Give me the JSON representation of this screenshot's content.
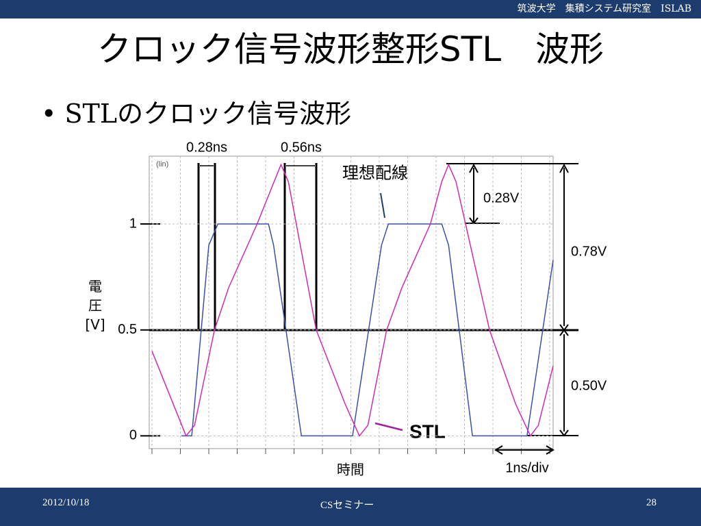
{
  "header": {
    "text": "筑波大学　集積システム研究室　ISLAB"
  },
  "title": "クロック信号波形整形STL　波形",
  "bullet": "STLのクロック信号波形",
  "chart_data": {
    "type": "line",
    "ylabel": "電圧[V]",
    "xlabel": "時間",
    "scale_label": "(lin)",
    "xlim": [
      0,
      7.06
    ],
    "ylim": [
      -0.06,
      1.32
    ],
    "yticks": [
      0,
      0.5,
      1
    ],
    "grid": true,
    "series": [
      {
        "name": "理想配線",
        "color": "#3a4fa8",
        "x": [
          0.52,
          0.7,
          1.0,
          1.16,
          2.05,
          2.14,
          2.63,
          3.53,
          4.04,
          4.16,
          5.1,
          5.22,
          5.64,
          6.6,
          7.06
        ],
        "values": [
          0,
          0,
          0.9,
          1,
          1,
          0.9,
          0,
          0,
          0.9,
          1,
          1,
          0.9,
          0,
          0,
          0.83
        ]
      },
      {
        "name": "STL",
        "color": "#d02ab4",
        "x": [
          0,
          0.6,
          0.75,
          1.1,
          1.35,
          1.85,
          2.15,
          2.27,
          2.4,
          2.89,
          3.4,
          3.65,
          3.8,
          4.13,
          4.4,
          4.9,
          5.1,
          5.22,
          5.35,
          5.94,
          6.4,
          6.66,
          6.8,
          7.06
        ],
        "values": [
          0.4,
          0,
          0.05,
          0.5,
          0.7,
          1.0,
          1.2,
          1.28,
          1.2,
          0.5,
          0.15,
          0,
          0.05,
          0.5,
          0.7,
          1.0,
          1.2,
          1.28,
          1.2,
          0.5,
          0.15,
          0,
          0.05,
          0.33
        ]
      }
    ],
    "annotations": [
      "0.28ns",
      "0.56ns",
      "0.28V",
      "0.78V",
      "0.50V",
      "1ns/div"
    ]
  },
  "footer": {
    "date": "2012/10/18",
    "center": "CSセミナー",
    "page": "28"
  }
}
